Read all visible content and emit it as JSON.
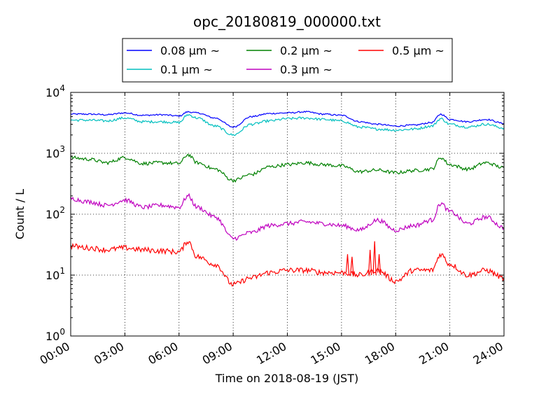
{
  "chart_data": {
    "type": "line",
    "title": "opc_20180819_000000.txt",
    "xlabel": "Time on 2018-08-19 (JST)",
    "ylabel": "Count / L",
    "y_scale": "log",
    "ylim": [
      1,
      10000
    ],
    "y_ticks": [
      {
        "value": 1,
        "base": "10",
        "exp": "0"
      },
      {
        "value": 10,
        "base": "10",
        "exp": "1"
      },
      {
        "value": 100,
        "base": "10",
        "exp": "2"
      },
      {
        "value": 1000,
        "base": "10",
        "exp": "3"
      },
      {
        "value": 10000,
        "base": "10",
        "exp": "4"
      }
    ],
    "xlim": [
      "2018-08-19 00:00",
      "2018-08-20 00:00"
    ],
    "x_ticks": [
      {
        "value": "2018-08-19 00:00",
        "label": "00:00"
      },
      {
        "value": "2018-08-19 03:00",
        "label": "03:00"
      },
      {
        "value": "2018-08-19 06:00",
        "label": "06:00"
      },
      {
        "value": "2018-08-19 09:00",
        "label": "09:00"
      },
      {
        "value": "2018-08-19 12:00",
        "label": "12:00"
      },
      {
        "value": "2018-08-19 15:00",
        "label": "15:00"
      },
      {
        "value": "2018-08-19 18:00",
        "label": "18:00"
      },
      {
        "value": "2018-08-19 21:00",
        "label": "21:00"
      },
      {
        "value": "2018-08-20 00:00",
        "label": "24:00"
      }
    ],
    "grid": true,
    "legend_position": "top-center",
    "x": [
      "2018-08-19 00:00",
      "2018-08-19 01:00",
      "2018-08-19 02:00",
      "2018-08-19 03:00",
      "2018-08-19 04:00",
      "2018-08-19 05:00",
      "2018-08-19 06:00",
      "2018-08-19 06:30",
      "2018-08-19 07:00",
      "2018-08-19 08:00",
      "2018-08-19 09:00",
      "2018-08-19 10:00",
      "2018-08-19 11:00",
      "2018-08-19 12:00",
      "2018-08-19 13:00",
      "2018-08-19 14:00",
      "2018-08-19 15:00",
      "2018-08-19 16:00",
      "2018-08-19 17:00",
      "2018-08-19 18:00",
      "2018-08-19 19:00",
      "2018-08-19 20:00",
      "2018-08-19 20:30",
      "2018-08-19 21:00",
      "2018-08-19 22:00",
      "2018-08-19 23:00",
      "2018-08-20 00:00"
    ],
    "series": [
      {
        "name": "0.08 μm ~",
        "color": "#0000ff",
        "values": [
          4400,
          4400,
          4300,
          4600,
          4200,
          4300,
          4100,
          4800,
          4600,
          3800,
          2700,
          4000,
          4500,
          4600,
          4800,
          4400,
          4200,
          3300,
          3000,
          2800,
          2900,
          3200,
          4400,
          3600,
          3300,
          3600,
          3100
        ]
      },
      {
        "name": "0.1 μm ~",
        "color": "#00bfbf",
        "values": [
          3500,
          3500,
          3400,
          3800,
          3300,
          3300,
          3200,
          4300,
          3800,
          2800,
          2000,
          3000,
          3400,
          3700,
          3800,
          3600,
          3400,
          2700,
          2500,
          2400,
          2500,
          2800,
          3700,
          3000,
          2700,
          3000,
          2600
        ]
      },
      {
        "name": "0.2 μm ~",
        "color": "#008000",
        "values": [
          850,
          800,
          700,
          850,
          680,
          700,
          680,
          950,
          700,
          550,
          360,
          450,
          600,
          650,
          700,
          650,
          620,
          500,
          530,
          480,
          520,
          550,
          850,
          650,
          550,
          700,
          580
        ]
      },
      {
        "name": "0.3 μm ~",
        "color": "#bf00bf",
        "values": [
          180,
          160,
          140,
          170,
          130,
          140,
          130,
          200,
          130,
          90,
          40,
          50,
          65,
          70,
          75,
          70,
          65,
          55,
          80,
          55,
          65,
          80,
          150,
          110,
          70,
          90,
          60
        ]
      },
      {
        "name": "0.5 μm ~",
        "color": "#ff0000",
        "values": [
          30,
          28,
          26,
          28,
          26,
          25,
          24,
          36,
          20,
          15,
          7,
          9,
          11,
          12,
          12,
          11,
          11,
          10,
          12,
          8,
          12,
          12,
          22,
          15,
          10,
          12,
          9
        ]
      }
    ],
    "annotations": [
      {
        "series": "0.5 μm ~",
        "type": "spikes",
        "x": [
          "2018-08-19 15:20",
          "2018-08-19 15:35",
          "2018-08-19 16:35",
          "2018-08-19 16:50",
          "2018-08-19 17:05"
        ],
        "values": [
          22,
          20,
          26,
          36,
          22
        ]
      }
    ]
  }
}
